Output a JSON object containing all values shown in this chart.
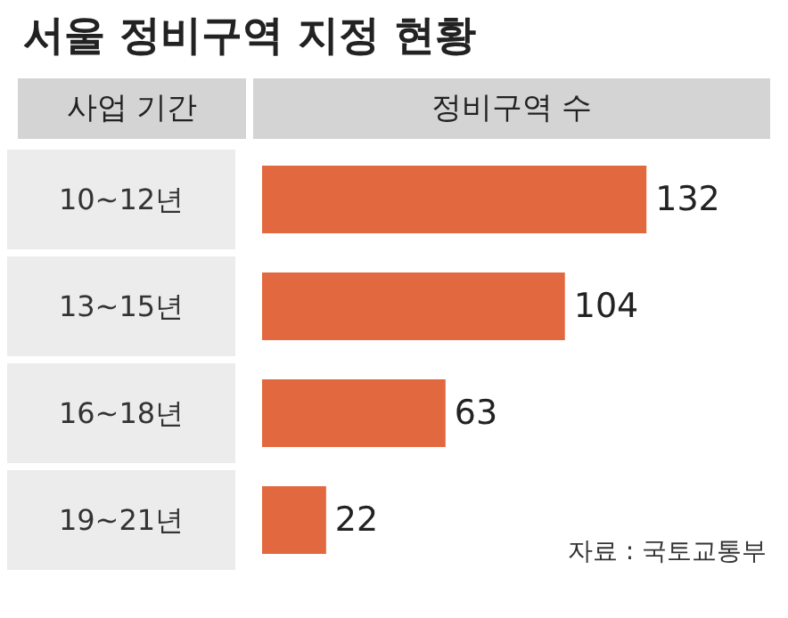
{
  "chart_data": {
    "type": "bar",
    "orientation": "horizontal",
    "title": "서울 정비구역 지정 현황",
    "ylabel": "사업 기간",
    "xlabel": "정비구역 수",
    "categories": [
      "10~12년",
      "13~15년",
      "16~18년",
      "19~21년"
    ],
    "values": [
      132,
      104,
      63,
      22
    ],
    "color": "#e2693f",
    "data_labels": true,
    "annotations": [
      "자료 : 국토교통부"
    ]
  }
}
